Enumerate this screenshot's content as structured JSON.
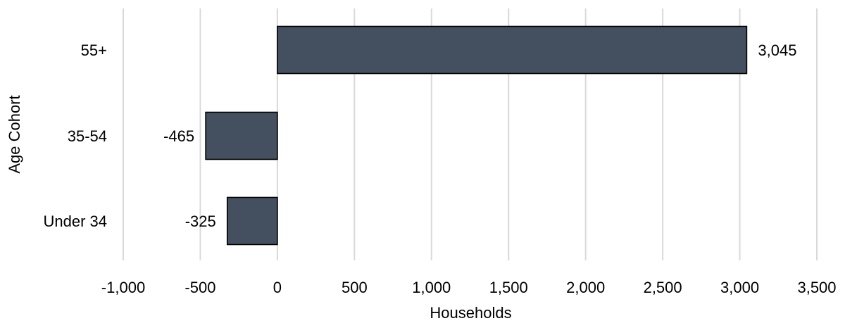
{
  "chart_data": {
    "type": "bar",
    "orientation": "horizontal",
    "categories": [
      "55+",
      "35-54",
      "Under 34"
    ],
    "values": [
      3045,
      -465,
      -325
    ],
    "data_labels": [
      "3,045",
      "-465",
      "-325"
    ],
    "xlabel": "Households",
    "ylabel": "Age Cohort",
    "xlim": [
      -1000,
      3500
    ],
    "x_ticks": [
      -1000,
      -500,
      0,
      500,
      1000,
      1500,
      2000,
      2500,
      3000,
      3500
    ],
    "x_tick_labels": [
      "-1,000",
      "-500",
      "0",
      "500",
      "1,000",
      "1,500",
      "2,000",
      "2,500",
      "3,000",
      "3,500"
    ],
    "grid": "vertical",
    "legend": "none",
    "bar_color": "#44505f",
    "bar_outline_color": "#000000",
    "grid_color": "#d9d9d9"
  }
}
